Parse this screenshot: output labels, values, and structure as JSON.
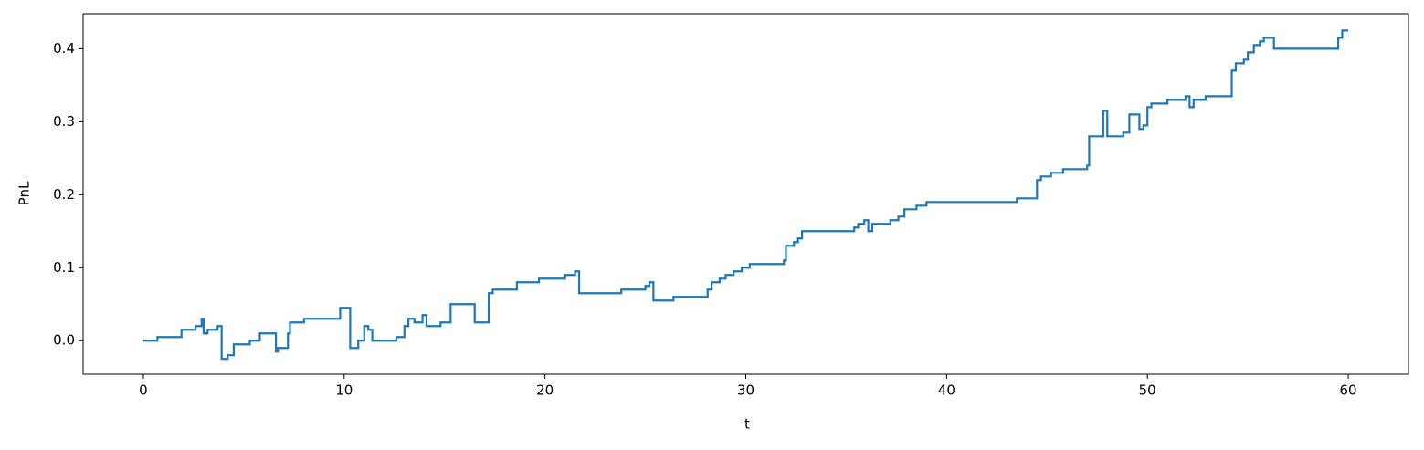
{
  "chart_data": {
    "type": "line",
    "drawstyle": "steps-post",
    "xlabel": "t",
    "ylabel": "PnL",
    "color": "#1f77b4",
    "grid": false,
    "x": [
      0,
      0.7,
      1.9,
      2.6,
      2.9,
      3.0,
      3.2,
      3.7,
      3.9,
      4.2,
      4.5,
      5.3,
      5.8,
      6.6,
      6.7,
      7.2,
      7.3,
      8.0,
      9.8,
      10.3,
      10.7,
      11.0,
      11.2,
      11.4,
      12.6,
      13.0,
      13.2,
      13.5,
      13.9,
      14.1,
      14.8,
      15.3,
      16.5,
      17.2,
      17.4,
      18.6,
      19.7,
      21.0,
      21.5,
      21.7,
      23.8,
      25.0,
      25.2,
      25.4,
      26.4,
      28.1,
      28.3,
      28.7,
      29.0,
      29.4,
      29.8,
      30.2,
      31.9,
      32.0,
      32.4,
      32.6,
      32.8,
      35.4,
      35.6,
      35.9,
      36.1,
      36.3,
      37.2,
      37.6,
      37.9,
      38.5,
      39.0,
      43.5,
      44.5,
      44.7,
      45.2,
      45.8,
      47.0,
      47.1,
      47.8,
      48.0,
      48.8,
      49.1,
      49.6,
      49.8,
      50.0,
      50.2,
      51.0,
      51.9,
      52.1,
      52.3,
      52.9,
      54.2,
      54.4,
      54.8,
      55.0,
      55.3,
      55.6,
      55.8,
      56.3,
      59.5,
      59.7,
      60.0
    ],
    "values": [
      0,
      0.005,
      0.015,
      0.02,
      0.03,
      0.01,
      0.015,
      0.02,
      -0.025,
      -0.02,
      -0.005,
      0,
      0.01,
      -0.015,
      -0.01,
      0.01,
      0.025,
      0.03,
      0.045,
      -0.01,
      0,
      0.02,
      0.015,
      0,
      0.005,
      0.02,
      0.03,
      0.025,
      0.035,
      0.02,
      0.025,
      0.05,
      0.025,
      0.065,
      0.07,
      0.08,
      0.085,
      0.09,
      0.095,
      0.065,
      0.07,
      0.075,
      0.08,
      0.055,
      0.06,
      0.07,
      0.08,
      0.085,
      0.09,
      0.095,
      0.1,
      0.105,
      0.11,
      0.13,
      0.135,
      0.14,
      0.15,
      0.155,
      0.16,
      0.165,
      0.15,
      0.16,
      0.165,
      0.17,
      0.18,
      0.185,
      0.19,
      0.195,
      0.22,
      0.225,
      0.23,
      0.235,
      0.24,
      0.28,
      0.315,
      0.28,
      0.285,
      0.31,
      0.29,
      0.295,
      0.32,
      0.325,
      0.33,
      0.335,
      0.32,
      0.33,
      0.335,
      0.37,
      0.38,
      0.385,
      0.395,
      0.405,
      0.41,
      0.415,
      0.4,
      0.415,
      0.425,
      0.425
    ],
    "xlim": [
      -3,
      63
    ],
    "xticks": [
      0,
      10,
      20,
      30,
      40,
      50,
      60
    ],
    "ylim": [
      -0.046,
      0.448
    ],
    "yticks": [
      {
        "value": 0,
        "label": "0.0"
      },
      0.1,
      0.2,
      0.3,
      0.4
    ]
  }
}
